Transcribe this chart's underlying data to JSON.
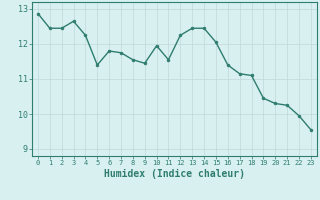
{
  "x": [
    0,
    1,
    2,
    3,
    4,
    5,
    6,
    7,
    8,
    9,
    10,
    11,
    12,
    13,
    14,
    15,
    16,
    17,
    18,
    19,
    20,
    21,
    22,
    23
  ],
  "y": [
    12.87,
    12.45,
    12.45,
    12.65,
    12.25,
    11.4,
    11.8,
    11.75,
    11.55,
    11.45,
    11.95,
    11.55,
    12.25,
    12.45,
    12.45,
    12.05,
    11.4,
    11.15,
    11.1,
    10.45,
    10.3,
    10.25,
    9.95,
    9.55
  ],
  "line_color": "#2e7d6e",
  "marker": "o",
  "marker_size": 2.0,
  "line_width": 1.0,
  "bg_color": "#d9f0f0",
  "grid_color": "#c0d8d8",
  "tick_color": "#2e7d6e",
  "xlabel": "Humidex (Indice chaleur)",
  "xlabel_fontsize": 7,
  "xlabel_color": "#2e7d6e",
  "ylabel_ticks": [
    9,
    10,
    11,
    12,
    13
  ],
  "xlim": [
    -0.5,
    23.5
  ],
  "ylim": [
    8.8,
    13.2
  ],
  "xticks": [
    0,
    1,
    2,
    3,
    4,
    5,
    6,
    7,
    8,
    9,
    10,
    11,
    12,
    13,
    14,
    15,
    16,
    17,
    18,
    19,
    20,
    21,
    22,
    23
  ]
}
